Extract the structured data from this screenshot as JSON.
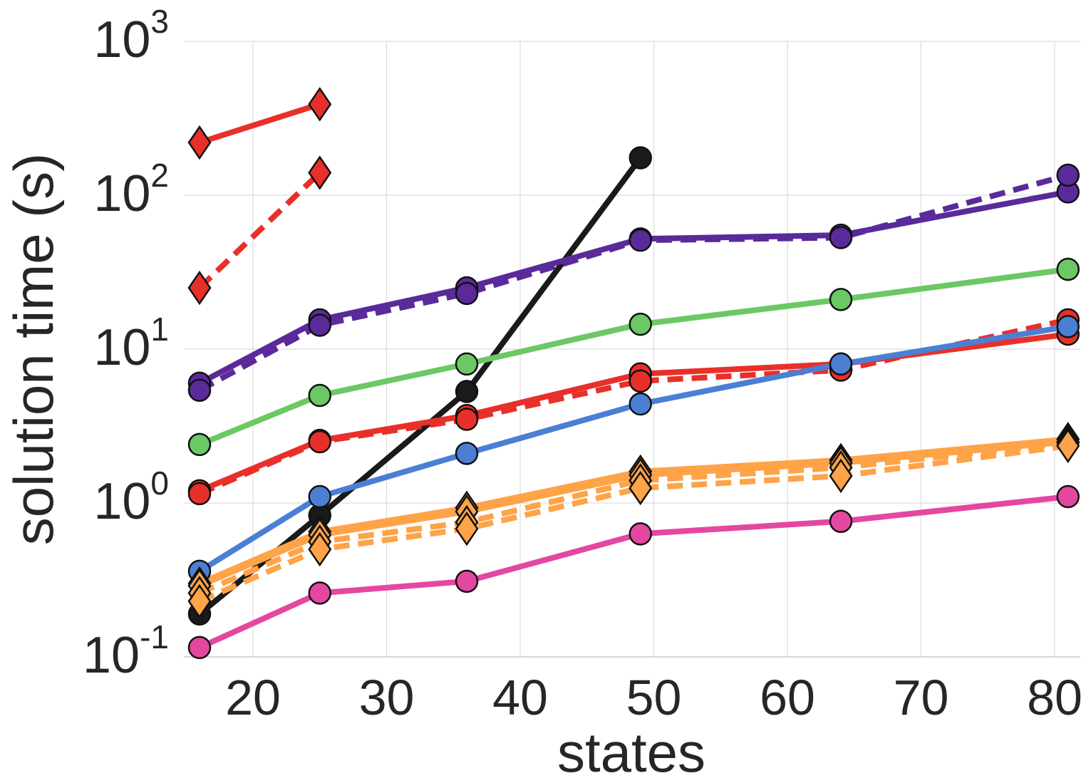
{
  "chart_data": {
    "type": "line",
    "title": "",
    "xlabel": "states",
    "ylabel": "solution time (s)",
    "x_scale": "linear",
    "y_scale": "log",
    "xlim": [
      15,
      82
    ],
    "ylim": [
      0.08,
      1000
    ],
    "grid": true,
    "legend": "none",
    "x_ticks": [
      "20",
      "30",
      "40",
      "50",
      "60",
      "70",
      "80"
    ],
    "x_tick_values": [
      20,
      30,
      40,
      50,
      60,
      70,
      80
    ],
    "y_ticks": [
      {
        "base": "10",
        "exp": "-1",
        "value": 0.1
      },
      {
        "base": "10",
        "exp": "0",
        "value": 1
      },
      {
        "base": "10",
        "exp": "1",
        "value": 10
      },
      {
        "base": "10",
        "exp": "2",
        "value": 100
      },
      {
        "base": "10",
        "exp": "3",
        "value": 1000
      }
    ],
    "series": [
      {
        "color": "#e8302a",
        "line": "solid",
        "marker": "diamond",
        "x": [
          16,
          25
        ],
        "y": [
          220,
          390
        ]
      },
      {
        "color": "#e8302a",
        "line": "dashed",
        "marker": "diamond",
        "x": [
          16,
          25
        ],
        "y": [
          25,
          140
        ]
      },
      {
        "color": "#1a1a1a",
        "line": "solid",
        "marker": "circle",
        "x": [
          16,
          25,
          36,
          49
        ],
        "y": [
          0.19,
          0.83,
          5.3,
          175
        ]
      },
      {
        "color": "#5a2a9a",
        "line": "solid",
        "marker": "circle",
        "x": [
          16,
          25,
          36,
          49,
          64,
          81
        ],
        "y": [
          6.0,
          15.5,
          25,
          52,
          55,
          105
        ]
      },
      {
        "color": "#5a2a9a",
        "line": "dashed",
        "marker": "circle",
        "x": [
          16,
          25,
          36,
          49,
          64,
          81
        ],
        "y": [
          5.4,
          14.3,
          23,
          51,
          53,
          135
        ]
      },
      {
        "color": "#6cc864",
        "line": "solid",
        "marker": "circle",
        "x": [
          16,
          25,
          36,
          49,
          64,
          81
        ],
        "y": [
          2.4,
          5.0,
          8.0,
          14.5,
          21,
          33
        ]
      },
      {
        "color": "#e8302a",
        "line": "solid",
        "marker": "circle",
        "x": [
          16,
          25,
          36,
          49,
          64,
          81
        ],
        "y": [
          1.2,
          2.55,
          3.7,
          6.9,
          8.0,
          12.5
        ]
      },
      {
        "color": "#e8302a",
        "line": "dashed",
        "marker": "circle",
        "x": [
          16,
          25,
          36,
          49,
          64,
          81
        ],
        "y": [
          1.15,
          2.5,
          3.5,
          6.2,
          7.3,
          15.5
        ]
      },
      {
        "color": "#4a7fd4",
        "line": "solid",
        "marker": "circle",
        "x": [
          16,
          25,
          36,
          49,
          64,
          81
        ],
        "y": [
          0.36,
          1.1,
          2.1,
          4.4,
          8.0,
          14
        ]
      },
      {
        "color": "#ffa348",
        "line": "solid",
        "marker": "diamond",
        "x": [
          16,
          25,
          36,
          49,
          64,
          81
        ],
        "y": [
          0.3,
          0.65,
          0.93,
          1.6,
          1.9,
          2.6
        ]
      },
      {
        "color": "#ffa348",
        "line": "solid",
        "marker": "diamond",
        "x": [
          16,
          25,
          36,
          49,
          64,
          81
        ],
        "y": [
          0.29,
          0.62,
          0.88,
          1.52,
          1.82,
          2.5
        ]
      },
      {
        "color": "#ffa348",
        "line": "dashed",
        "marker": "diamond",
        "x": [
          16,
          25,
          36,
          49,
          64,
          81
        ],
        "y": [
          0.26,
          0.56,
          0.75,
          1.4,
          1.7,
          2.45
        ]
      },
      {
        "color": "#ffa348",
        "line": "dashed",
        "marker": "diamond",
        "x": [
          16,
          25,
          36,
          49,
          64,
          81
        ],
        "y": [
          0.23,
          0.5,
          0.68,
          1.25,
          1.5,
          2.35
        ]
      },
      {
        "color": "#e447a0",
        "line": "solid",
        "marker": "circle",
        "x": [
          16,
          25,
          36,
          49,
          64,
          81
        ],
        "y": [
          0.115,
          0.26,
          0.31,
          0.63,
          0.76,
          1.1
        ]
      }
    ]
  }
}
